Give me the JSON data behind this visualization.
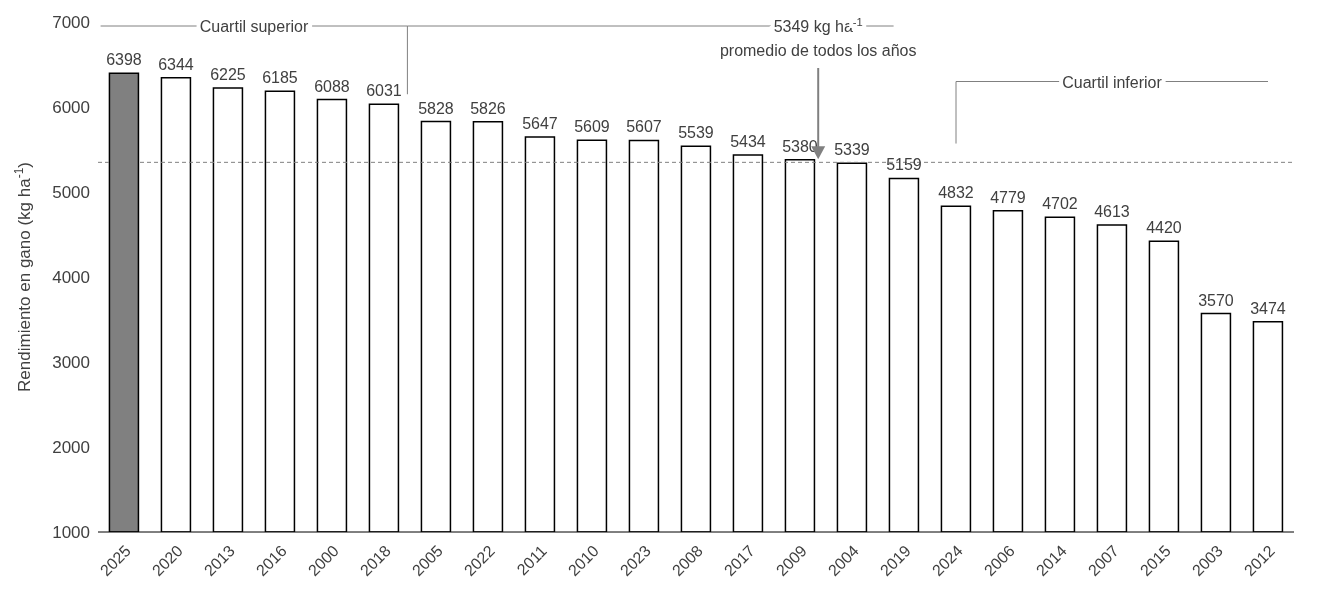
{
  "chart_data": {
    "type": "bar",
    "ylabel": "Rendimiento en gano (kg ha$^{-1}$)",
    "categories": [
      "2025",
      "2020",
      "2013",
      "2016",
      "2000",
      "2018",
      "2005",
      "2022",
      "2011",
      "2010",
      "2023",
      "2008",
      "2017",
      "2009",
      "2004",
      "2019",
      "2024",
      "2006",
      "2014",
      "2007",
      "2015",
      "2003",
      "2012"
    ],
    "values": [
      6398,
      6344,
      6225,
      6185,
      6088,
      6031,
      5828,
      5826,
      5647,
      5609,
      5607,
      5539,
      5434,
      5380,
      5339,
      5159,
      4832,
      4779,
      4702,
      4613,
      4420,
      3570,
      3474
    ],
    "colors": [
      "#808080",
      "#ffffff",
      "#ffffff",
      "#ffffff",
      "#ffffff",
      "#ffffff",
      "#ffffff",
      "#ffffff",
      "#ffffff",
      "#ffffff",
      "#ffffff",
      "#ffffff",
      "#ffffff",
      "#ffffff",
      "#ffffff",
      "#ffffff",
      "#ffffff",
      "#ffffff",
      "#ffffff",
      "#ffffff",
      "#ffffff",
      "#ffffff",
      "#ffffff"
    ],
    "ylim": [
      1000,
      7000
    ],
    "yticks": [
      1000,
      2000,
      3000,
      4000,
      5000,
      6000,
      7000
    ],
    "data_labels": true,
    "ref_lines": [
      {
        "axis": "y",
        "value": 5349,
        "label": "5349 kg ha$^{-1}$\npromedio de todos los años",
        "color": "#808080",
        "line_style": "dashed"
      }
    ],
    "annotations": [
      "Cuartil superior",
      "Cuartil inferior"
    ]
  }
}
